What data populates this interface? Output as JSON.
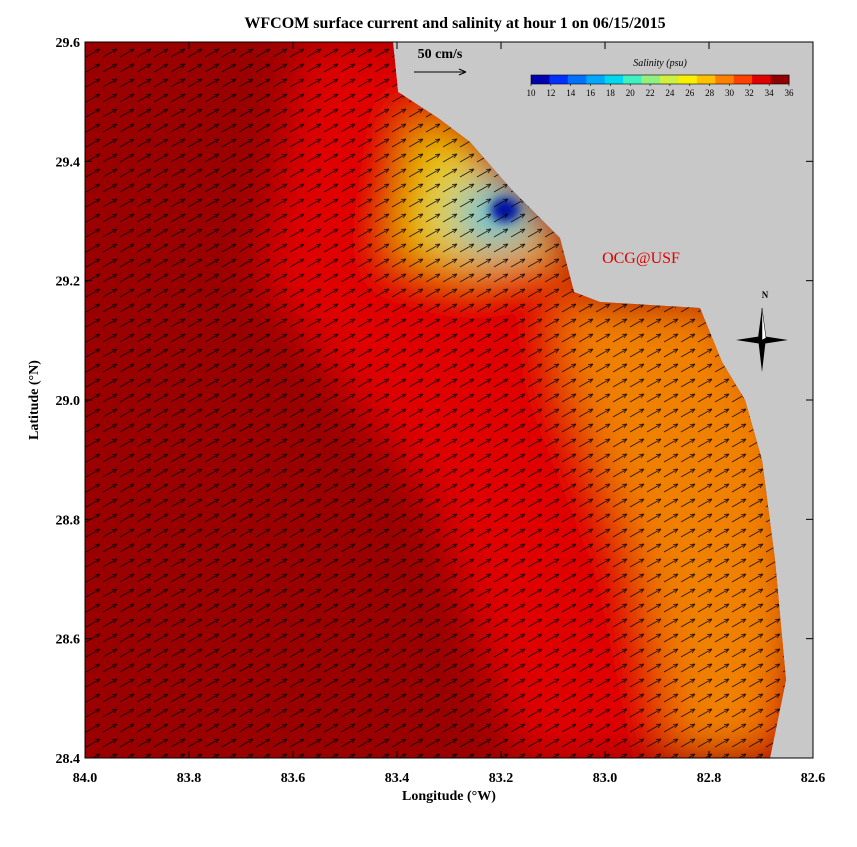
{
  "chart_data": {
    "type": "map",
    "title": "WFCOM surface current and salinity at hour 1 on 06/15/2015",
    "xlabel": "Longitude (°W)",
    "ylabel": "Latitude (°N)",
    "xlim": [
      84.0,
      82.6
    ],
    "ylim": [
      28.4,
      29.6
    ],
    "xticks": [
      {
        "value": 84,
        "label": "84.0"
      },
      83.8,
      83.6,
      83.4,
      83.2,
      {
        "value": 83,
        "label": "83.0"
      },
      82.8,
      82.6
    ],
    "yticks": [
      28.4,
      28.6,
      28.8,
      {
        "value": 29,
        "label": "29.0"
      },
      29.2,
      29.4,
      29.6
    ],
    "colorbar": {
      "title": "Salinity (psu)",
      "lim": [
        10,
        36
      ],
      "ticks": [
        10,
        12,
        14,
        16,
        18,
        20,
        22,
        24,
        26,
        28,
        30,
        32,
        34,
        36
      ],
      "colors": [
        "#0000b0",
        "#0030ff",
        "#0070ff",
        "#00a8ff",
        "#00d8f0",
        "#40f0c0",
        "#90f080",
        "#d0f040",
        "#f8f000",
        "#ffc000",
        "#ff8000",
        "#ff4000",
        "#e00000",
        "#900000"
      ]
    },
    "scale_label": "50 cm/s",
    "credit": "OCG@USF",
    "compass": "N"
  }
}
